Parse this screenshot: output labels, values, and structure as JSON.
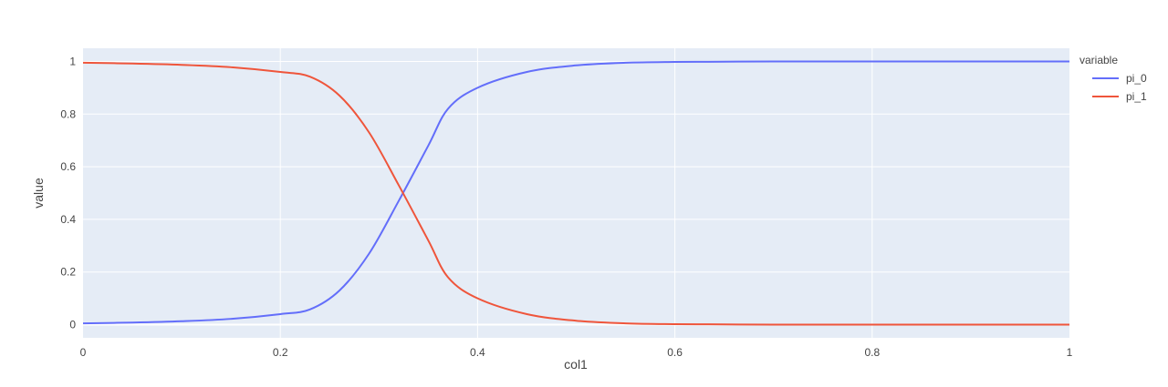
{
  "chart_data": {
    "type": "line",
    "xlabel": "col1",
    "ylabel": "value",
    "xlim": [
      0,
      1
    ],
    "ylim": [
      -0.05,
      1.05
    ],
    "grid": true,
    "background_color": "#E5ECF6",
    "legend": {
      "title": "variable",
      "placement": "top-right-outside"
    },
    "x_ticks": [
      {
        "value": 0,
        "label": "0"
      },
      {
        "value": 0.2,
        "label": "0.2"
      },
      {
        "value": 0.4,
        "label": "0.4"
      },
      {
        "value": 0.6,
        "label": "0.6"
      },
      {
        "value": 0.8,
        "label": "0.8"
      },
      {
        "value": 1,
        "label": "1"
      }
    ],
    "y_ticks": [
      {
        "value": 0,
        "label": "0"
      },
      {
        "value": 0.2,
        "label": "0.2"
      },
      {
        "value": 0.4,
        "label": "0.4"
      },
      {
        "value": 0.6,
        "label": "0.6"
      },
      {
        "value": 0.8,
        "label": "0.8"
      },
      {
        "value": 1,
        "label": "1"
      }
    ],
    "x": [
      0,
      0.05,
      0.1,
      0.15,
      0.2,
      0.23,
      0.26,
      0.29,
      0.32,
      0.35,
      0.37,
      0.4,
      0.45,
      0.5,
      0.55,
      0.6,
      0.65,
      0.7,
      0.8,
      0.9,
      1.0
    ],
    "series": [
      {
        "name": "pi_0",
        "color": "#636EFA",
        "values": [
          0.005,
          0.008,
          0.013,
          0.022,
          0.04,
          0.058,
          0.13,
          0.27,
          0.47,
          0.68,
          0.82,
          0.9,
          0.96,
          0.985,
          0.995,
          0.998,
          0.999,
          1.0,
          1.0,
          1.0,
          1.0
        ]
      },
      {
        "name": "pi_1",
        "color": "#EF553B",
        "values": [
          0.995,
          0.992,
          0.987,
          0.978,
          0.96,
          0.942,
          0.87,
          0.73,
          0.53,
          0.32,
          0.18,
          0.1,
          0.04,
          0.015,
          0.005,
          0.002,
          0.001,
          0.0,
          0.0,
          0.0,
          0.0
        ]
      }
    ]
  }
}
